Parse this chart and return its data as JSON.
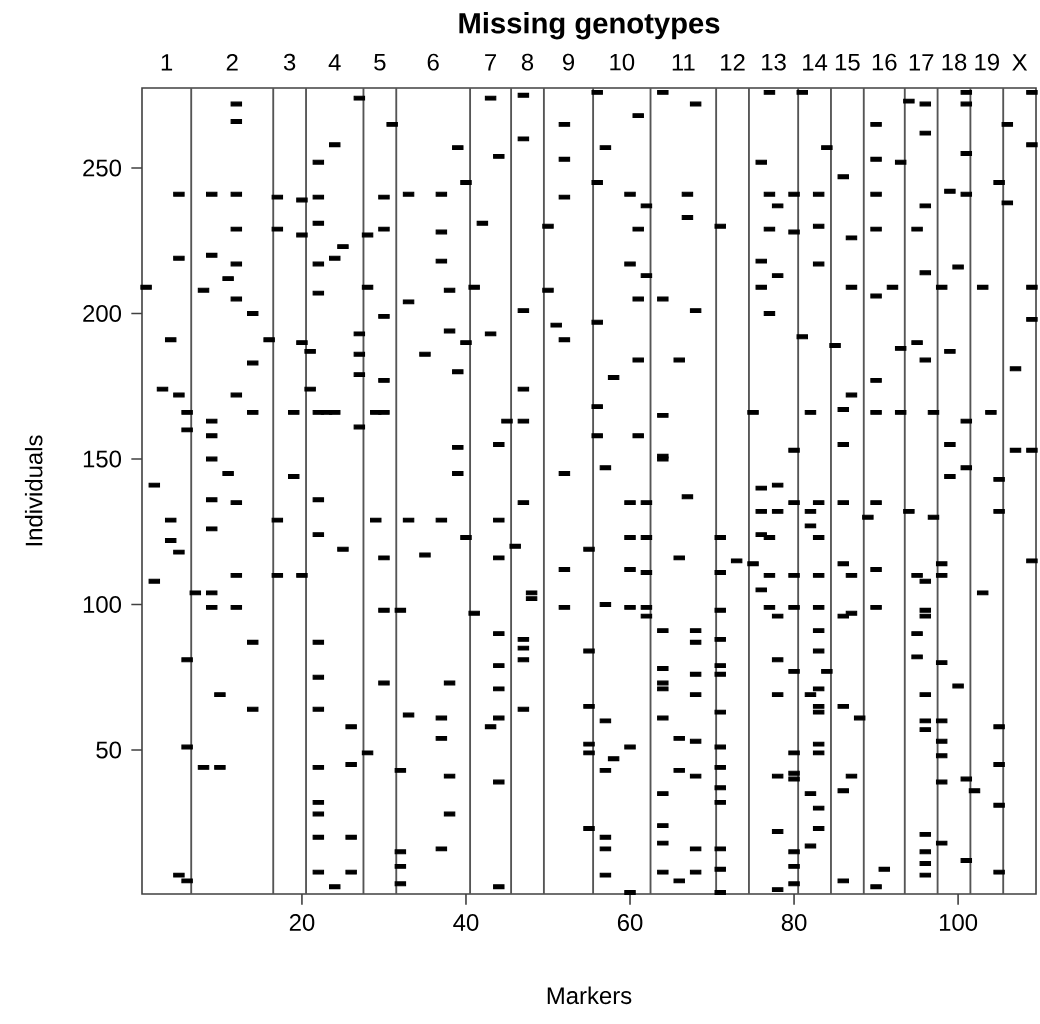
{
  "chart_data": {
    "type": "scatter",
    "title": "Missing genotypes",
    "xlabel": "Markers",
    "ylabel": "Individuals",
    "xlim": [
      0.5,
      109.5
    ],
    "ylim": [
      0.5,
      277.5
    ],
    "xticks": [
      20,
      40,
      60,
      80,
      100
    ],
    "yticks": [
      50,
      100,
      150,
      200,
      250
    ],
    "annotations": [
      "1",
      "2",
      "3",
      "4",
      "5",
      "6",
      "7",
      "8",
      "9",
      "10",
      "11",
      "12",
      "13",
      "14",
      "15",
      "16",
      "17",
      "18",
      "19",
      "X"
    ],
    "ref_lines": [
      {
        "axis": "x",
        "value": 6.5,
        "color": "#555555"
      },
      {
        "axis": "x",
        "value": 16.5,
        "color": "#555555"
      },
      {
        "axis": "x",
        "value": 20.5,
        "color": "#555555"
      },
      {
        "axis": "x",
        "value": 27.5,
        "color": "#555555"
      },
      {
        "axis": "x",
        "value": 31.5,
        "color": "#555555"
      },
      {
        "axis": "x",
        "value": 40.5,
        "color": "#555555"
      },
      {
        "axis": "x",
        "value": 45.5,
        "color": "#555555"
      },
      {
        "axis": "x",
        "value": 49.5,
        "color": "#555555"
      },
      {
        "axis": "x",
        "value": 55.5,
        "color": "#555555"
      },
      {
        "axis": "x",
        "value": 62.5,
        "color": "#555555"
      },
      {
        "axis": "x",
        "value": 70.5,
        "color": "#555555"
      },
      {
        "axis": "x",
        "value": 74.5,
        "color": "#555555"
      },
      {
        "axis": "x",
        "value": 80.5,
        "color": "#555555"
      },
      {
        "axis": "x",
        "value": 84.5,
        "color": "#555555"
      },
      {
        "axis": "x",
        "value": 88.5,
        "color": "#555555"
      },
      {
        "axis": "x",
        "value": 93.5,
        "color": "#555555"
      },
      {
        "axis": "x",
        "value": 97.5,
        "color": "#555555"
      },
      {
        "axis": "x",
        "value": 101.5,
        "color": "#555555"
      },
      {
        "axis": "x",
        "value": 105.5,
        "color": "#555555"
      }
    ],
    "marker": "square",
    "grid": false,
    "series": [
      {
        "color": "#000000",
        "x": [
          12,
          12,
          27,
          31,
          24,
          22,
          5,
          9,
          12,
          17,
          20,
          22,
          30,
          33,
          12,
          17,
          20,
          22,
          28,
          30,
          5,
          9,
          12,
          11,
          22,
          24,
          25,
          1,
          8,
          12,
          22,
          28,
          14,
          33,
          30,
          4,
          16,
          20,
          21,
          27,
          27,
          14,
          35,
          30,
          21,
          3,
          5,
          12,
          27,
          14,
          6,
          6,
          9,
          9,
          19,
          22,
          23,
          24,
          29,
          30,
          27,
          9,
          43,
          47,
          56,
          64,
          68,
          52,
          61,
          47,
          44,
          39,
          57,
          52,
          37,
          40,
          56,
          62,
          60,
          67,
          52,
          37,
          42,
          50,
          61,
          67,
          71,
          37,
          60,
          62,
          38,
          41,
          50,
          61,
          64,
          68,
          47,
          56,
          43,
          51,
          52,
          38,
          40,
          61,
          66,
          58,
          39,
          47,
          56,
          64,
          45,
          47,
          56,
          61,
          64,
          44,
          39,
          77,
          81,
          94,
          96,
          101,
          101,
          109,
          90,
          96,
          84,
          90,
          93,
          76,
          86,
          101,
          106,
          109,
          99,
          101,
          105,
          106,
          77,
          80,
          83,
          90,
          96,
          78,
          77,
          83,
          80,
          87,
          90,
          95,
          76,
          83,
          78,
          100,
          96,
          87,
          92,
          98,
          103,
          109,
          76,
          90,
          109,
          77,
          81,
          85,
          93,
          95,
          96,
          99,
          107,
          90,
          87,
          86,
          90,
          93,
          97,
          75,
          82,
          101,
          104,
          99,
          86,
          109,
          107,
          80,
          2,
          11,
          19,
          9,
          12,
          22,
          4,
          4,
          5,
          9,
          17,
          22,
          25,
          29,
          33,
          30,
          35,
          12,
          17,
          20,
          2,
          7,
          9,
          9,
          12,
          14,
          22,
          30,
          32,
          6,
          22,
          30,
          10,
          14,
          22,
          26,
          33,
          6,
          28,
          8,
          10,
          22,
          26,
          32,
          22,
          22,
          22,
          26,
          32,
          32,
          22,
          26,
          5,
          6,
          24,
          32,
          39,
          52,
          57,
          64,
          47,
          60,
          62,
          67,
          37,
          44,
          40,
          46,
          60,
          62,
          55,
          44,
          66,
          52,
          60,
          62,
          71,
          71,
          71,
          73,
          48,
          48,
          52,
          57,
          60,
          62,
          62,
          41,
          44,
          47,
          47,
          47,
          44,
          55,
          64,
          68,
          68,
          71,
          71,
          71,
          64,
          64,
          64,
          68,
          68,
          38,
          44,
          47,
          44,
          43,
          37,
          37,
          55,
          57,
          55,
          55,
          57,
          58,
          60,
          64,
          66,
          68,
          66,
          68,
          71,
          71,
          71,
          71,
          71,
          38,
          44,
          64,
          64,
          38,
          37,
          55,
          57,
          57,
          57,
          64,
          68,
          71,
          71,
          68,
          64,
          66,
          71,
          44,
          60,
          76,
          78,
          80,
          83,
          86,
          90,
          89,
          94,
          97,
          99,
          101,
          105,
          105,
          109,
          76,
          78,
          82,
          82,
          83,
          76,
          77,
          75,
          77,
          80,
          83,
          86,
          87,
          90,
          95,
          96,
          98,
          98,
          76,
          77,
          78,
          80,
          83,
          86,
          87,
          90,
          96,
          96,
          95,
          83,
          83,
          95,
          78,
          80,
          84,
          83,
          82,
          98,
          100,
          103,
          78,
          83,
          83,
          86,
          88,
          96,
          96,
          98,
          98,
          98,
          96,
          105,
          105,
          105,
          105,
          80,
          80,
          80,
          78,
          83,
          83,
          87,
          86,
          82,
          83,
          83,
          82,
          78,
          80,
          80,
          80,
          78,
          86,
          90,
          91,
          96,
          96,
          96,
          96,
          98,
          101,
          102,
          101,
          98
        ],
        "values": [
          272,
          266,
          274,
          265,
          258,
          252,
          241,
          241,
          241,
          240,
          239,
          240,
          240,
          241,
          229,
          229,
          227,
          231,
          227,
          229,
          219,
          220,
          217,
          212,
          217,
          219,
          223,
          209,
          208,
          205,
          207,
          209,
          200,
          204,
          199,
          191,
          191,
          190,
          187,
          193,
          186,
          183,
          186,
          177,
          174,
          174,
          172,
          172,
          179,
          166,
          166,
          160,
          163,
          158,
          166,
          166,
          166,
          166,
          166,
          166,
          161,
          150,
          274,
          275,
          276,
          276,
          272,
          265,
          268,
          260,
          254,
          257,
          257,
          253,
          241,
          245,
          245,
          237,
          241,
          241,
          240,
          228,
          231,
          230,
          229,
          233,
          230,
          218,
          217,
          213,
          208,
          209,
          208,
          205,
          205,
          201,
          201,
          197,
          193,
          196,
          191,
          194,
          190,
          184,
          184,
          178,
          180,
          174,
          168,
          165,
          163,
          163,
          158,
          158,
          151,
          155,
          154,
          276,
          276,
          273,
          272,
          276,
          272,
          276,
          265,
          262,
          257,
          253,
          252,
          252,
          247,
          255,
          265,
          258,
          242,
          241,
          245,
          238,
          241,
          241,
          241,
          241,
          237,
          237,
          229,
          230,
          228,
          226,
          229,
          229,
          218,
          217,
          213,
          216,
          214,
          209,
          209,
          209,
          209,
          209,
          209,
          206,
          198,
          200,
          192,
          189,
          188,
          190,
          184,
          187,
          181,
          177,
          172,
          167,
          166,
          166,
          166,
          166,
          166,
          163,
          166,
          155,
          155,
          153,
          153,
          153,
          141,
          145,
          144,
          136,
          135,
          136,
          129,
          122,
          118,
          126,
          129,
          124,
          119,
          129,
          129,
          116,
          117,
          110,
          110,
          110,
          108,
          104,
          104,
          99,
          99,
          87,
          87,
          98,
          98,
          81,
          75,
          73,
          69,
          64,
          64,
          58,
          62,
          51,
          49,
          44,
          44,
          44,
          45,
          43,
          32,
          28,
          20,
          20,
          15,
          10,
          8,
          8,
          7,
          5,
          3,
          4,
          145,
          145,
          147,
          150,
          135,
          135,
          135,
          137,
          129,
          129,
          123,
          120,
          123,
          123,
          119,
          116,
          116,
          112,
          112,
          111,
          123,
          111,
          98,
          115,
          104,
          102,
          99,
          100,
          99,
          99,
          96,
          97,
          90,
          88,
          85,
          81,
          79,
          84,
          91,
          91,
          87,
          88,
          79,
          76,
          78,
          73,
          71,
          76,
          69,
          73,
          71,
          64,
          61,
          58,
          61,
          54,
          65,
          60,
          52,
          49,
          43,
          47,
          51,
          61,
          54,
          53,
          43,
          41,
          63,
          51,
          44,
          37,
          32,
          41,
          39,
          35,
          24,
          28,
          16,
          23,
          20,
          16,
          7,
          18,
          16,
          16,
          9,
          8,
          8,
          5,
          1,
          3,
          1,
          140,
          141,
          135,
          135,
          135,
          135,
          130,
          132,
          130,
          144,
          147,
          143,
          132,
          115,
          132,
          132,
          132,
          127,
          123,
          124,
          123,
          114,
          110,
          110,
          110,
          114,
          110,
          112,
          110,
          108,
          114,
          110,
          105,
          99,
          96,
          99,
          99,
          96,
          97,
          99,
          98,
          96,
          90,
          91,
          84,
          82,
          81,
          77,
          77,
          71,
          69,
          80,
          72,
          104,
          69,
          65,
          63,
          65,
          61,
          69,
          60,
          60,
          53,
          48,
          57,
          58,
          45,
          31,
          8,
          49,
          42,
          40,
          41,
          52,
          49,
          41,
          36,
          35,
          30,
          23,
          17,
          22,
          15,
          10,
          4,
          2,
          5,
          3,
          9,
          21,
          15,
          11,
          7,
          18,
          40,
          36,
          12,
          39
        ]
      }
    ]
  }
}
